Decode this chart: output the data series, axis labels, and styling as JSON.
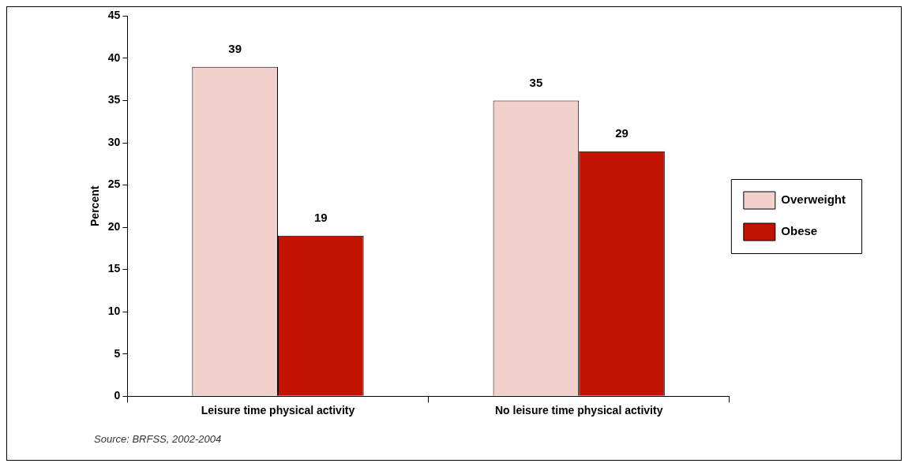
{
  "chart_data": {
    "type": "bar",
    "ylabel": "Percent",
    "categories": [
      "Leisure time physical activity",
      "No leisure time physical activity"
    ],
    "series": [
      {
        "name": "Overweight",
        "color": "#f2d0cc",
        "values": [
          39,
          35
        ]
      },
      {
        "name": "Obese",
        "color": "#c41200",
        "values": [
          19,
          29
        ]
      }
    ],
    "ylim": [
      0,
      45
    ],
    "yticks": [
      0,
      5,
      10,
      15,
      20,
      25,
      30,
      35,
      40,
      45
    ],
    "grid": false,
    "legend": "right",
    "data_labels": true,
    "annotations": [
      "Source: BRFSS, 2002-2004"
    ]
  }
}
